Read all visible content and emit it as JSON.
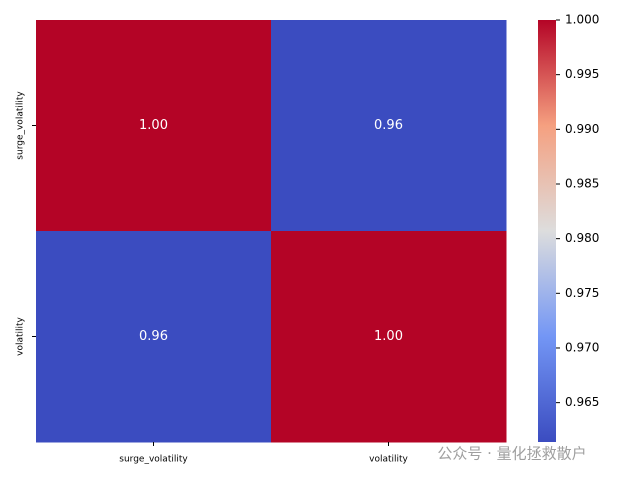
{
  "chart_data": {
    "type": "heatmap",
    "x_categories": [
      "surge_volatility",
      "volatility"
    ],
    "y_categories": [
      "surge_volatility",
      "volatility"
    ],
    "values": [
      [
        1.0,
        0.9614
      ],
      [
        0.9614,
        1.0
      ]
    ],
    "value_labels": [
      [
        "1.00",
        "0.96"
      ],
      [
        "0.96",
        "1.00"
      ]
    ],
    "colormap": "coolwarm",
    "clim": [
      0.9614,
      1.0
    ],
    "cticks": [
      0.965,
      {
        "value": 0.97,
        "label": "0.970"
      },
      0.975,
      {
        "value": 0.98,
        "label": "0.980"
      },
      0.985,
      {
        "value": 0.99,
        "label": "0.990"
      },
      0.995,
      {
        "value": 1.0,
        "label": "1.000"
      }
    ],
    "annotation": "公众号 · 量化拯救散户"
  }
}
